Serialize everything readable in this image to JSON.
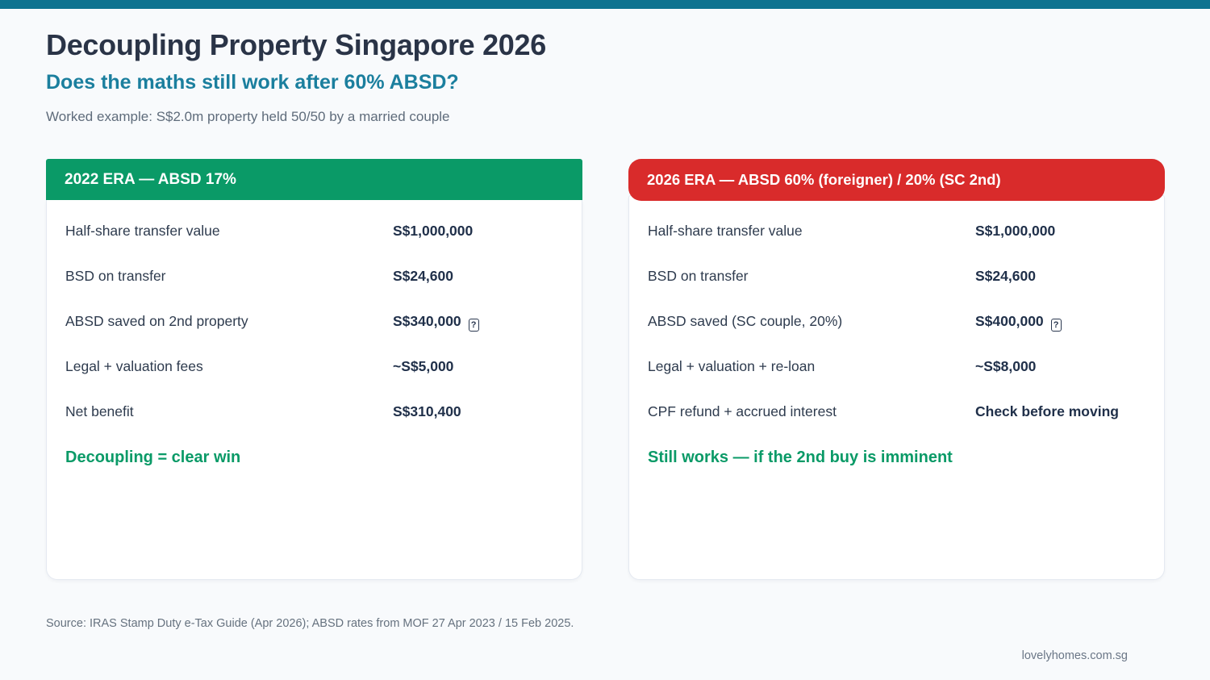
{
  "page": {
    "title": "Decoupling Property Singapore 2026",
    "subtitle": "Does the maths still work after 60% ABSD?",
    "example": "Worked example: S$2.0m property held 50/50 by a married couple",
    "source": "Source: IRAS Stamp Duty e-Tax Guide (Apr 2026); ABSD rates from MOF 27 Apr 2023 / 15 Feb 2025.",
    "footer": "lovelyhomes.com.sg"
  },
  "colors": {
    "top_bar": "#0f7390",
    "subtitle_teal": "#1b7f9e",
    "green": "#0a9a67",
    "red": "#d92b2b"
  },
  "badge_glyph": "?",
  "cards": [
    {
      "header": "2022 ERA — ABSD 17%",
      "rows": [
        {
          "label": "Half-share transfer value",
          "value": "S$1,000,000"
        },
        {
          "label": "BSD on transfer",
          "value": "S$24,600"
        },
        {
          "label": "ABSD saved on 2nd property",
          "value": "S$340,000"
        },
        {
          "label": "Legal + valuation fees",
          "value": "~S$5,000"
        },
        {
          "label": "Net benefit",
          "value": "S$310,400"
        }
      ],
      "verdict": "Decoupling = clear win"
    },
    {
      "header": "2026 ERA — ABSD 60% (foreigner) / 20% (SC 2nd)",
      "rows": [
        {
          "label": "Half-share transfer value",
          "value": "S$1,000,000"
        },
        {
          "label": "BSD on transfer",
          "value": "S$24,600"
        },
        {
          "label": "ABSD saved (SC couple, 20%)",
          "value": "S$400,000"
        },
        {
          "label": "Legal + valuation + re-loan",
          "value": "~S$8,000"
        },
        {
          "label": "CPF refund + accrued interest",
          "value": "Check before moving"
        }
      ],
      "verdict": "Still works — if the 2nd buy is imminent"
    }
  ]
}
